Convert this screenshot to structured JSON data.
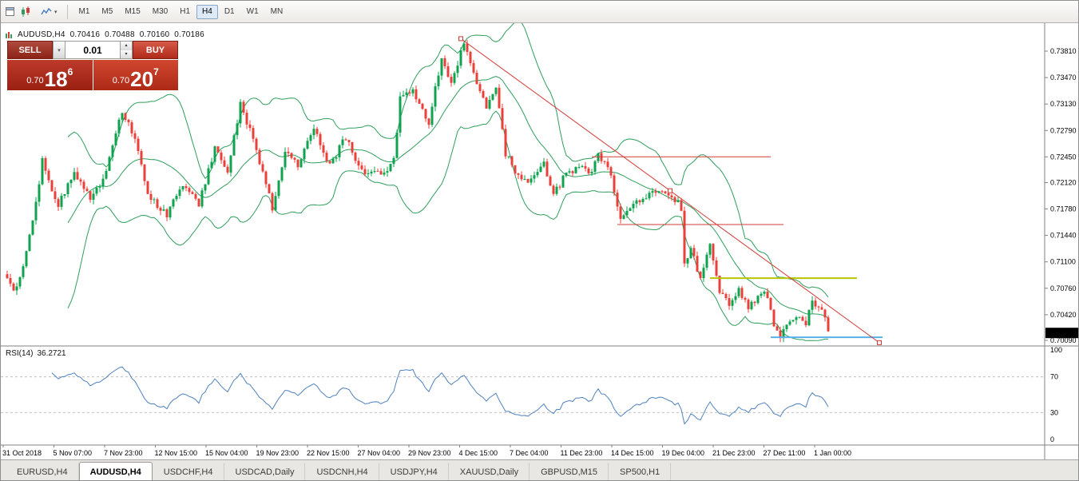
{
  "toolbar": {
    "timeframes": [
      "M1",
      "M5",
      "M15",
      "M30",
      "H1",
      "H4",
      "D1",
      "W1",
      "MN"
    ],
    "active_timeframe": "H4"
  },
  "trade_panel": {
    "sell_label": "SELL",
    "buy_label": "BUY",
    "volume": "0.01",
    "sell_price": {
      "prefix": "0.70",
      "big": "18",
      "sup": "6"
    },
    "buy_price": {
      "prefix": "0.70",
      "big": "20",
      "sup": "7"
    }
  },
  "chart_data": {
    "type": "candlestick",
    "title": "AUDUSD,H4",
    "ohlc_line": {
      "symbol": "AUDUSD,H4",
      "open": "0.70416",
      "high": "0.70488",
      "low": "0.70160",
      "close": "0.70186"
    },
    "price_axis": {
      "labels": [
        "0.73810",
        "0.73470",
        "0.73130",
        "0.72790",
        "0.72450",
        "0.72120",
        "0.71780",
        "0.71440",
        "0.71100",
        "0.70760",
        "0.70420",
        "0.70090"
      ],
      "current": "0.70186"
    },
    "time_axis": [
      "31 Oct 2018",
      "5 Nov 07:00",
      "7 Nov 23:00",
      "12 Nov 15:00",
      "15 Nov 04:00",
      "19 Nov 23:00",
      "22 Nov 15:00",
      "27 Nov 04:00",
      "29 Nov 23:00",
      "4 Dec 15:00",
      "7 Dec 04:00",
      "11 Dec 23:00",
      "14 Dec 15:00",
      "19 Dec 04:00",
      "21 Dec 23:00",
      "27 Dec 11:00",
      "1 Jan 00:00"
    ],
    "candle_count": 258,
    "seed": 7,
    "price_path": [
      [
        0,
        0.709
      ],
      [
        2,
        0.707
      ],
      [
        5,
        0.7105
      ],
      [
        8,
        0.716
      ],
      [
        11,
        0.724
      ],
      [
        14,
        0.7205
      ],
      [
        16,
        0.7185
      ],
      [
        21,
        0.7225
      ],
      [
        26,
        0.719
      ],
      [
        31,
        0.7225
      ],
      [
        36,
        0.7305
      ],
      [
        40,
        0.727
      ],
      [
        44,
        0.7195
      ],
      [
        50,
        0.717
      ],
      [
        55,
        0.721
      ],
      [
        60,
        0.7185
      ],
      [
        65,
        0.7255
      ],
      [
        69,
        0.7225
      ],
      [
        73,
        0.7315
      ],
      [
        78,
        0.7255
      ],
      [
        83,
        0.718
      ],
      [
        87,
        0.725
      ],
      [
        91,
        0.7235
      ],
      [
        96,
        0.728
      ],
      [
        101,
        0.7235
      ],
      [
        106,
        0.727
      ],
      [
        111,
        0.7225
      ],
      [
        118,
        0.7225
      ],
      [
        121,
        0.724
      ],
      [
        123,
        0.732
      ],
      [
        127,
        0.733
      ],
      [
        132,
        0.729
      ],
      [
        136,
        0.7375
      ],
      [
        139,
        0.734
      ],
      [
        143,
        0.739
      ],
      [
        147,
        0.734
      ],
      [
        150,
        0.731
      ],
      [
        153,
        0.733
      ],
      [
        156,
        0.725
      ],
      [
        160,
        0.722
      ],
      [
        164,
        0.7215
      ],
      [
        168,
        0.7235
      ],
      [
        171,
        0.7195
      ],
      [
        175,
        0.7225
      ],
      [
        179,
        0.723
      ],
      [
        183,
        0.7225
      ],
      [
        185,
        0.725
      ],
      [
        189,
        0.722
      ],
      [
        192,
        0.7165
      ],
      [
        198,
        0.719
      ],
      [
        204,
        0.72
      ],
      [
        210,
        0.7185
      ],
      [
        211,
        0.7178
      ],
      [
        212,
        0.711
      ],
      [
        214,
        0.7125
      ],
      [
        217,
        0.709
      ],
      [
        220,
        0.713
      ],
      [
        223,
        0.707
      ],
      [
        226,
        0.7055
      ],
      [
        229,
        0.7075
      ],
      [
        232,
        0.705
      ],
      [
        235,
        0.7065
      ],
      [
        237,
        0.7075
      ],
      [
        240,
        0.703
      ],
      [
        242,
        0.7012
      ],
      [
        245,
        0.7035
      ],
      [
        248,
        0.704
      ],
      [
        250,
        0.703
      ],
      [
        252,
        0.7058
      ],
      [
        255,
        0.705
      ],
      [
        257,
        0.7019
      ]
    ],
    "indicators": {
      "bollinger": {
        "name": "Bollinger Bands",
        "period": 20,
        "deviation": 2,
        "color": "#2e9e5b"
      },
      "rsi": {
        "label": "RSI(14)",
        "value": "36.2721",
        "period": 14,
        "levels": [
          "100",
          "70",
          "30",
          "0"
        ],
        "color": "#4f81bd"
      }
    },
    "objects": {
      "trendline": {
        "from_idx": 142,
        "from_price": 0.7397,
        "to_idx": 273,
        "to_price": 0.7006,
        "color": "#d23b36"
      },
      "hlines": [
        {
          "price": 0.7245,
          "from_idx": 183,
          "to_idx": 239,
          "color": "#d23b36",
          "width": 1
        },
        {
          "price": 0.7158,
          "from_idx": 191,
          "to_idx": 243,
          "color": "#d23b36",
          "width": 1
        },
        {
          "price": 0.7089,
          "from_idx": 220,
          "to_idx": 266,
          "color": "#b9c400",
          "width": 2
        },
        {
          "price": 0.7013,
          "from_idx": 239,
          "to_idx": 274,
          "color": "#59b0e8",
          "width": 2
        }
      ]
    },
    "colors": {
      "up": "#0fa34f",
      "down": "#e8403a"
    }
  },
  "tabs": {
    "items": [
      "EURUSD,H4",
      "AUDUSD,H4",
      "USDCHF,H4",
      "USDCAD,Daily",
      "USDCNH,H4",
      "USDJPY,H4",
      "XAUUSD,Daily",
      "GBPUSD,M15",
      "SP500,H1"
    ],
    "active": "AUDUSD,H4"
  }
}
